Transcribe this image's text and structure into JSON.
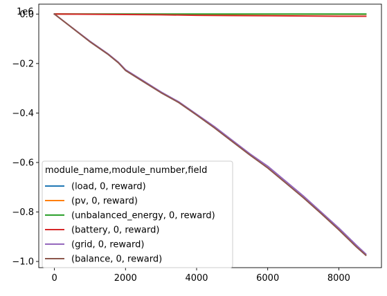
{
  "chart_data": {
    "type": "line",
    "title": "",
    "xlabel": "",
    "ylabel": "",
    "y_offset_label": "1e6",
    "xlim": [
      -440,
      9200
    ],
    "ylim": [
      -1.025,
      0.04
    ],
    "xticks": [
      0,
      2000,
      4000,
      6000,
      8000
    ],
    "xtick_labels": [
      "0",
      "2000",
      "4000",
      "6000",
      "8000"
    ],
    "yticks": [
      0.0,
      -0.2,
      -0.4,
      -0.6,
      -0.8,
      -1.0
    ],
    "ytick_labels": [
      "0.0",
      "−0.2",
      "−0.4",
      "−0.6",
      "−0.8",
      "−1.0"
    ],
    "grid": false,
    "legend": {
      "title": "module_name,module_number,field",
      "placement": "lower-left"
    },
    "series": [
      {
        "name": "(load, 0, reward)",
        "color": "#1f77b4",
        "x": [
          0,
          8760
        ],
        "y": [
          0,
          -0.001
        ]
      },
      {
        "name": "(pv, 0, reward)",
        "color": "#ff7f0e",
        "x": [
          0,
          8760
        ],
        "y": [
          0,
          -0.001
        ]
      },
      {
        "name": "(unbalanced_energy, 0, reward)",
        "color": "#2ca02c",
        "x": [
          0,
          8760
        ],
        "y": [
          0,
          0.0
        ]
      },
      {
        "name": "(battery, 0, reward)",
        "color": "#d62728",
        "x": [
          0,
          1000,
          2000,
          3000,
          4000,
          5000,
          6000,
          7000,
          8000,
          8760
        ],
        "y": [
          0,
          -0.001,
          -0.002,
          -0.003,
          -0.005,
          -0.006,
          -0.007,
          -0.008,
          -0.009,
          -0.009
        ]
      },
      {
        "name": "(grid, 0, reward)",
        "color": "#9467bd",
        "x": [
          0,
          500,
          1000,
          1500,
          1800,
          2000,
          2500,
          3000,
          3500,
          4000,
          4500,
          5000,
          5500,
          6000,
          6500,
          7000,
          7500,
          8000,
          8500,
          8760
        ],
        "y": [
          0,
          -0.055,
          -0.11,
          -0.16,
          -0.195,
          -0.225,
          -0.27,
          -0.315,
          -0.355,
          -0.405,
          -0.455,
          -0.51,
          -0.565,
          -0.615,
          -0.675,
          -0.735,
          -0.8,
          -0.865,
          -0.935,
          -0.97
        ]
      },
      {
        "name": "(balance, 0, reward)",
        "color": "#8c564b",
        "x": [
          0,
          500,
          1000,
          1500,
          1800,
          2000,
          2500,
          3000,
          3500,
          4000,
          4500,
          5000,
          5500,
          6000,
          6500,
          7000,
          7500,
          8000,
          8500,
          8760
        ],
        "y": [
          0,
          -0.056,
          -0.112,
          -0.162,
          -0.197,
          -0.228,
          -0.273,
          -0.318,
          -0.358,
          -0.408,
          -0.46,
          -0.515,
          -0.57,
          -0.622,
          -0.682,
          -0.742,
          -0.806,
          -0.872,
          -0.942,
          -0.975
        ]
      }
    ]
  }
}
